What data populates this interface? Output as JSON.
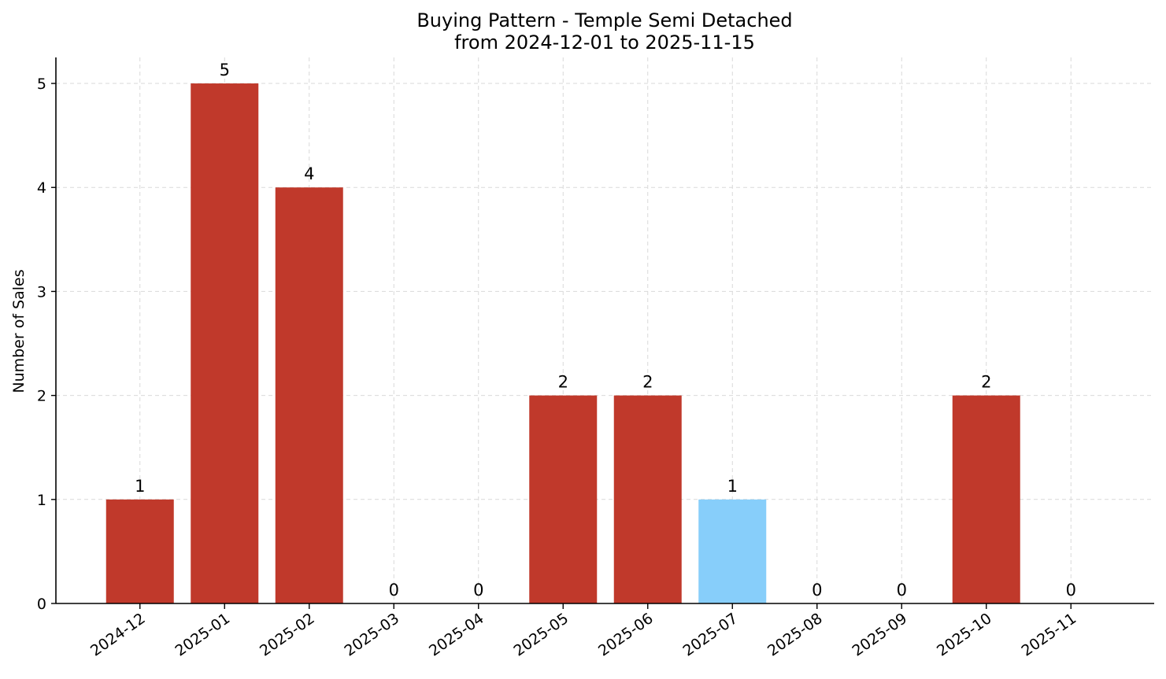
{
  "chart_data": {
    "type": "bar",
    "title": "Buying Pattern - Temple Semi Detached",
    "subtitle": "from 2024-12-01 to 2025-11-15",
    "xlabel": "",
    "ylabel": "Number of Sales",
    "categories": [
      "2024-12",
      "2025-01",
      "2025-02",
      "2025-03",
      "2025-04",
      "2025-05",
      "2025-06",
      "2025-07",
      "2025-08",
      "2025-09",
      "2025-10",
      "2025-11"
    ],
    "values": [
      1,
      5,
      4,
      0,
      0,
      2,
      2,
      1,
      0,
      0,
      2,
      0
    ],
    "data_labels": [
      "1",
      "5",
      "4",
      "0",
      "0",
      "2",
      "2",
      "1",
      "0",
      "0",
      "2",
      "0"
    ],
    "highlight_categories": [
      "2025-07"
    ],
    "ylim": [
      0,
      5.25
    ],
    "yticks": [
      0,
      1,
      2,
      3,
      4,
      5
    ],
    "grid": true,
    "colors": {
      "bar": "#c0392b",
      "highlight": "#87cefa",
      "grid": "#d9d9d9",
      "axis": "#000000"
    }
  }
}
